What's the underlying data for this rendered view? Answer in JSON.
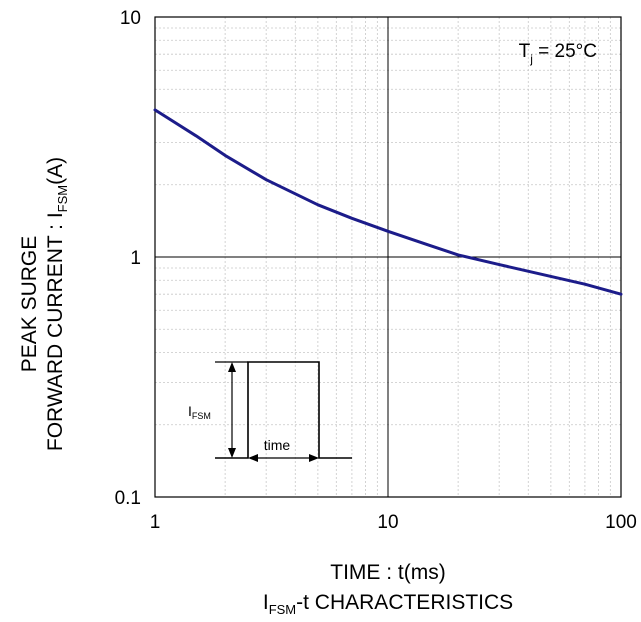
{
  "chart_data": {
    "type": "line",
    "x_scale": "log",
    "y_scale": "log",
    "xlim": [
      1,
      100
    ],
    "ylim": [
      0.1,
      10
    ],
    "x_ticks": [
      1,
      10,
      100
    ],
    "y_ticks": [
      0.1,
      1,
      10
    ],
    "x_tick_labels": [
      "1",
      "10",
      "100"
    ],
    "y_tick_labels": [
      "0.1",
      "1",
      "10"
    ],
    "xlabel": "TIME : t(ms)",
    "ylabel": {
      "line1": "PEAK SURGE",
      "line2_prefix": "FORWARD CURRENT : I",
      "line2_sub": "FSM",
      "line2_suffix": "(A)"
    },
    "caption": {
      "prefix": "I",
      "sub": "FSM",
      "suffix": "-t CHARACTERISTICS"
    },
    "annotation": {
      "prefix": "T",
      "sub": "j",
      "suffix": " = 25°C"
    },
    "grid": true,
    "series": [
      {
        "color": "#1c1c8a",
        "points": [
          {
            "x": 1,
            "y": 4.1
          },
          {
            "x": 1.5,
            "y": 3.2
          },
          {
            "x": 2,
            "y": 2.65
          },
          {
            "x": 3,
            "y": 2.1
          },
          {
            "x": 5,
            "y": 1.65
          },
          {
            "x": 7,
            "y": 1.45
          },
          {
            "x": 10,
            "y": 1.28
          },
          {
            "x": 15,
            "y": 1.12
          },
          {
            "x": 20,
            "y": 1.02
          },
          {
            "x": 30,
            "y": 0.93
          },
          {
            "x": 50,
            "y": 0.83
          },
          {
            "x": 70,
            "y": 0.77
          },
          {
            "x": 100,
            "y": 0.7
          }
        ]
      }
    ],
    "inset": {
      "pulse_label_prefix": "I",
      "pulse_label_sub": "FSM",
      "width_label": "time"
    }
  }
}
